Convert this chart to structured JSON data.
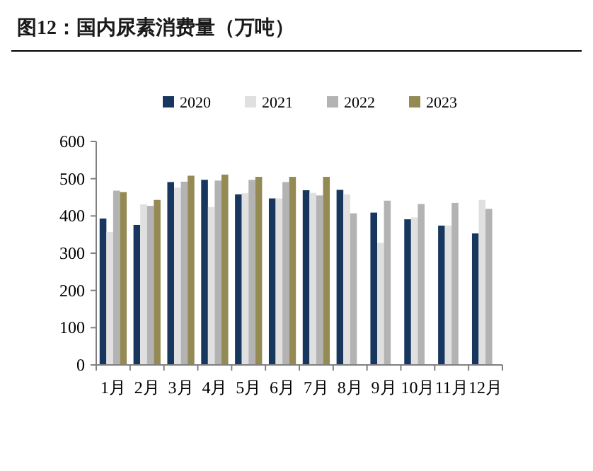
{
  "chart_data": {
    "type": "bar",
    "title": "图12：国内尿素消费量（万吨）",
    "categories": [
      "1月",
      "2月",
      "3月",
      "4月",
      "5月",
      "6月",
      "7月",
      "8月",
      "9月",
      "10月",
      "11月",
      "12月"
    ],
    "series": [
      {
        "name": "2020",
        "color": "#17375e",
        "values": [
          393,
          376,
          491,
          497,
          458,
          447,
          469,
          470,
          409,
          391,
          374,
          353
        ]
      },
      {
        "name": "2021",
        "color": "#e0e0e0",
        "values": [
          357,
          431,
          476,
          424,
          461,
          447,
          462,
          458,
          328,
          396,
          374,
          443
        ]
      },
      {
        "name": "2022",
        "color": "#b3b3b3",
        "values": [
          468,
          427,
          492,
          495,
          497,
          491,
          455,
          407,
          441,
          432,
          435,
          419
        ]
      },
      {
        "name": "2023",
        "color": "#948a54",
        "values": [
          464,
          443,
          508,
          511,
          505,
          505,
          505,
          null,
          null,
          null,
          null,
          null
        ]
      }
    ],
    "ylim": [
      0,
      600
    ],
    "yticks": [
      0,
      100,
      200,
      300,
      400,
      500,
      600
    ],
    "grid": false,
    "legend": "top"
  }
}
